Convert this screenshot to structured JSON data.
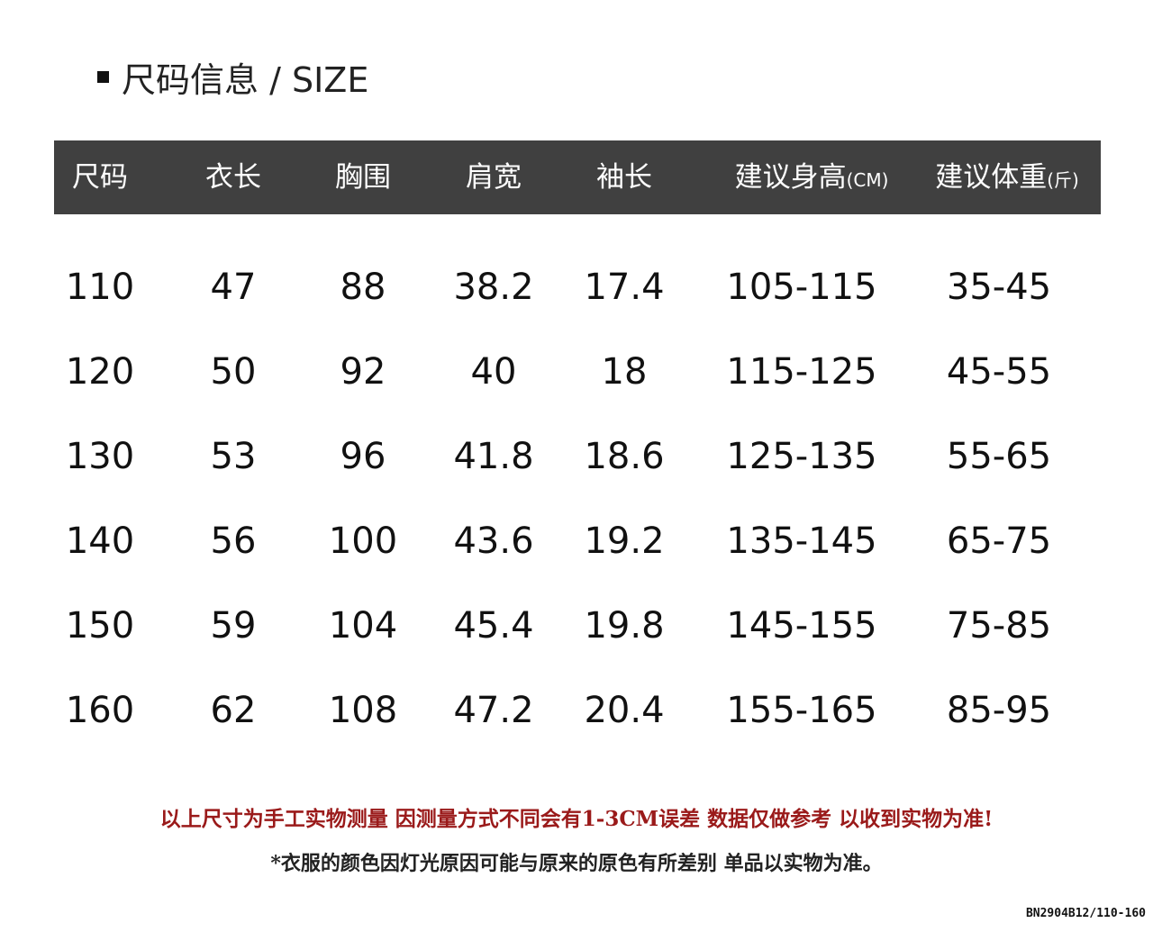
{
  "title": "尺码信息 / SIZE",
  "header": [
    {
      "label": "尺码",
      "unit": ""
    },
    {
      "label": "衣长",
      "unit": ""
    },
    {
      "label": "胸围",
      "unit": ""
    },
    {
      "label": "肩宽",
      "unit": ""
    },
    {
      "label": "袖长",
      "unit": ""
    },
    {
      "label": "建议身高",
      "unit": "(CM)"
    },
    {
      "label": "建议体重",
      "unit": "(斤)"
    }
  ],
  "rows": [
    [
      "110",
      "47",
      "88",
      "38.2",
      "17.4",
      "105-115",
      "35-45"
    ],
    [
      "120",
      "50",
      "92",
      "40",
      "18",
      "115-125",
      "45-55"
    ],
    [
      "130",
      "53",
      "96",
      "41.8",
      "18.6",
      "125-135",
      "55-65"
    ],
    [
      "140",
      "56",
      "100",
      "43.6",
      "19.2",
      "135-145",
      "65-75"
    ],
    [
      "150",
      "59",
      "104",
      "45.4",
      "19.8",
      "145-155",
      "75-85"
    ],
    [
      "160",
      "62",
      "108",
      "47.2",
      "20.4",
      "155-165",
      "85-95"
    ]
  ],
  "notes": {
    "measurement": "以上尺寸为手工实物测量  因测量方式不同会有1-3CM误差 数据仅做参考 以收到实物为准!",
    "color": "*衣服的颜色因灯光原因可能与原来的原色有所差别 单品以实物为准。"
  },
  "product_code": "BN2904B12/110-160",
  "colors": {
    "header_bg": "#404040",
    "note_red": "#9a1a1a"
  }
}
